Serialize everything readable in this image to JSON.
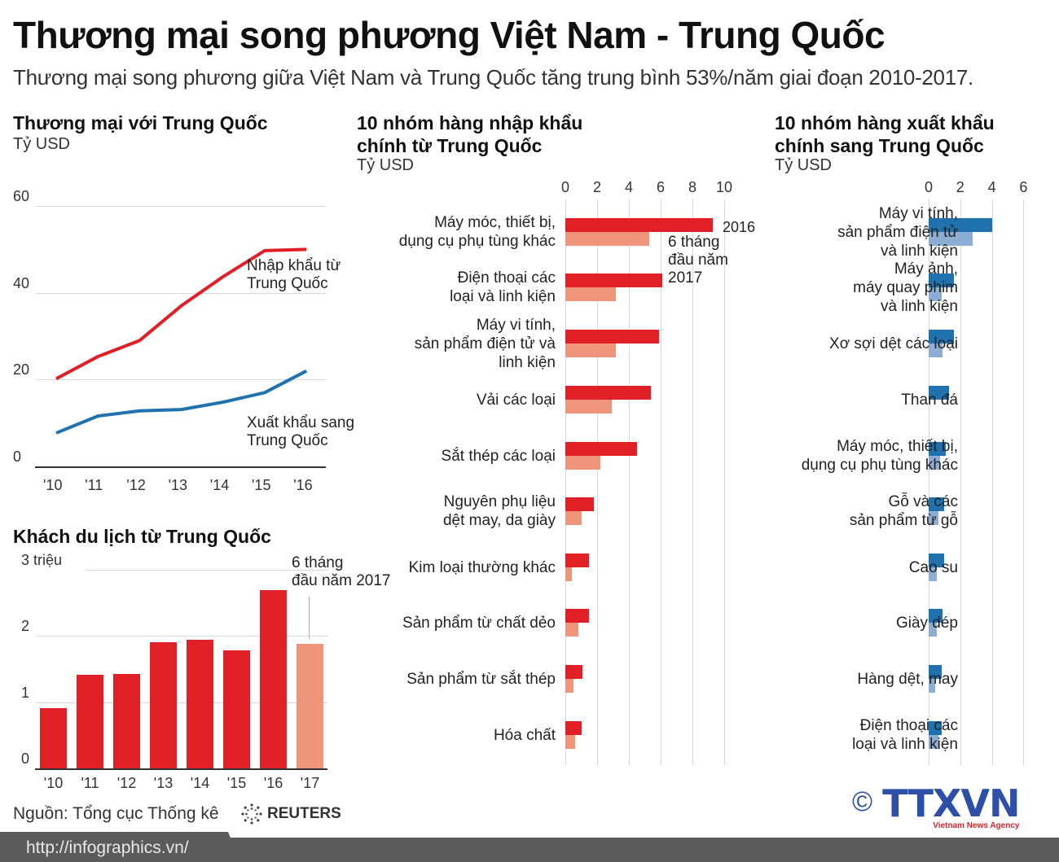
{
  "header": {
    "title": "Thương mại song phương Việt Nam - Trung Quốc",
    "subtitle": "Thương mại song phương giữa Việt Nam và Trung Quốc tăng trung bình 53%/năm giai đoạn 2010-2017."
  },
  "colors": {
    "red": "#e01f26",
    "salmon": "#ef957c",
    "blue_dark": "#1f72ad",
    "blue_light": "#8eadd3",
    "grid": "#d8d8d8",
    "footer": "#5b5b5b",
    "ttxvn_blue": "#2d4fa8"
  },
  "trade": {
    "title": "Thương mại với Trung Quốc",
    "unit": "Tỷ USD",
    "label_import": [
      "Nhập khẩu từ",
      "Trung Quốc"
    ],
    "label_export": [
      "Xuất khẩu sang",
      "Trung Quốc"
    ]
  },
  "tourism": {
    "title": "Khách du lịch từ Trung Quốc",
    "annotation": [
      "6 tháng",
      "đầu năm 2017"
    ]
  },
  "imports": {
    "title": [
      "10 nhóm hàng nhập khẩu",
      "chính từ Trung Quốc"
    ],
    "unit": "Tỷ USD",
    "legend_2016": "2016",
    "legend_2017": [
      "6 tháng",
      "đầu năm",
      "2017"
    ]
  },
  "exports": {
    "title": [
      "10 nhóm hàng xuất khẩu",
      "chính sang Trung Quốc"
    ],
    "unit": "Tỷ USD"
  },
  "footer": {
    "source": "Nguồn: Tổng cục Thống kê",
    "reuters": "REUTERS",
    "url": "http://infographics.vn/",
    "copyright": "©",
    "agency": "TTXVN",
    "agency_sub": "Vietnam News Agency"
  },
  "chart_data": [
    {
      "type": "line",
      "title": "Thương mại với Trung Quốc",
      "ylabel": "Tỷ USD",
      "x": [
        "'10",
        "'11",
        "'12",
        "'13",
        "'14",
        "'15",
        "'16"
      ],
      "yticks": [
        0,
        20,
        40,
        60
      ],
      "ylim": [
        0,
        60
      ],
      "series": [
        {
          "name": "Nhập khẩu từ Trung Quốc",
          "color": "#e01f26",
          "values": [
            20.2,
            25.3,
            29.0,
            37.0,
            43.7,
            49.7,
            50.0
          ]
        },
        {
          "name": "Xuất khẩu sang Trung Quốc",
          "color": "#1f72ad",
          "values": [
            7.7,
            11.6,
            12.8,
            13.1,
            14.8,
            17.0,
            22.0
          ]
        }
      ]
    },
    {
      "type": "bar",
      "title": "Khách du lịch từ Trung Quốc",
      "categories": [
        "'10",
        "'11",
        "'12",
        "'13",
        "'14",
        "'15",
        "'16",
        "'17"
      ],
      "values": [
        0.91,
        1.41,
        1.43,
        1.9,
        1.94,
        1.78,
        2.69,
        1.88
      ],
      "yticks": [
        "0",
        "1",
        "2",
        "3 triệu"
      ],
      "ylim": [
        0,
        3
      ],
      "annotation": "6 tháng đầu năm 2017 ('17)"
    },
    {
      "type": "bar",
      "orientation": "horizontal",
      "title": "10 nhóm hàng nhập khẩu chính từ Trung Quốc",
      "xlabel": "Tỷ USD",
      "xticks": [
        0,
        2,
        4,
        6,
        8,
        10
      ],
      "xlim": [
        0,
        10
      ],
      "categories": [
        [
          "Máy móc, thiết bị,",
          "dụng cụ phụ tùng khác"
        ],
        [
          "Điện thoại các",
          "loại và linh kiện"
        ],
        [
          "Máy vi tính,",
          "sản phẩm điện tử và",
          "linh kiện"
        ],
        [
          "Vải các loại"
        ],
        [
          "Sắt thép các loại"
        ],
        [
          "Nguyên phụ liệu",
          "dệt may, da giày"
        ],
        [
          "Kim loại thường khác"
        ],
        [
          "Sản phẩm từ chất dẻo"
        ],
        [
          "Sản phẩm từ sắt thép"
        ],
        [
          "Hóa chất"
        ]
      ],
      "series": [
        {
          "name": "2016",
          "color": "#e01f26",
          "values": [
            9.3,
            6.1,
            5.9,
            5.4,
            4.5,
            1.8,
            1.5,
            1.5,
            1.1,
            1.0
          ]
        },
        {
          "name": "6 tháng đầu năm 2017",
          "color": "#ef957c",
          "values": [
            5.3,
            3.2,
            3.2,
            2.9,
            2.2,
            1.0,
            0.4,
            0.8,
            0.5,
            0.6
          ]
        }
      ]
    },
    {
      "type": "bar",
      "orientation": "horizontal",
      "title": "10 nhóm hàng xuất khẩu chính sang Trung Quốc",
      "xlabel": "Tỷ USD",
      "xticks": [
        0,
        2,
        4,
        6
      ],
      "xlim": [
        0,
        6
      ],
      "categories": [
        [
          "Máy vi tính,",
          "sản phẩm điện tử",
          "và linh kiện"
        ],
        [
          "Máy ảnh,",
          "máy quay phim",
          "và linh kiện"
        ],
        [
          "Xơ sợi dệt các loại"
        ],
        [
          "Than đá"
        ],
        [
          "Máy móc, thiết bị,",
          "dụng cụ phụ tùng khác"
        ],
        [
          "Gỗ và các",
          "sản phẩm từ gỗ"
        ],
        [
          "Cao su"
        ],
        [
          "Giày dép"
        ],
        [
          "Hàng dệt, may"
        ],
        [
          "Điện thoại các",
          "loại và linh kiện"
        ]
      ],
      "series": [
        {
          "name": "2016",
          "color": "#1f72ad",
          "values": [
            4.0,
            1.6,
            1.6,
            1.3,
            1.1,
            1.0,
            1.0,
            0.9,
            0.8,
            0.8
          ]
        },
        {
          "name": "6 tháng đầu năm 2017",
          "color": "#8eadd3",
          "values": [
            2.8,
            0.8,
            0.9,
            0.0,
            0.7,
            0.6,
            0.5,
            0.5,
            0.4,
            0.6
          ]
        }
      ]
    }
  ]
}
